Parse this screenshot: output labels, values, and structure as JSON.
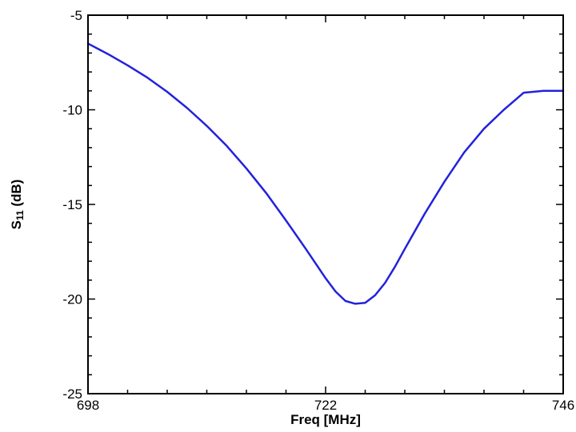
{
  "chart_data": {
    "type": "line",
    "xlabel": "Freq [MHz]",
    "ylabel_main": "S",
    "ylabel_sub": "11",
    "ylabel_unit": " (dB)",
    "xlim": [
      698,
      746
    ],
    "ylim": [
      -25,
      -5
    ],
    "x_ticks": [
      698,
      722,
      746
    ],
    "x_tick_labels": [
      "698",
      "722",
      "746"
    ],
    "y_ticks": [
      -5,
      -10,
      -15,
      -20,
      -25
    ],
    "y_tick_labels": [
      "-5",
      "-10",
      "-15",
      "-20",
      "-25"
    ],
    "y_minor_step": 1,
    "x_minor_step": 4,
    "grid": false,
    "series": [
      {
        "color": "#2222dd",
        "x": [
          698,
          700,
          702,
          704,
          706,
          708,
          710,
          712,
          714,
          716,
          718,
          720,
          722,
          723,
          724,
          725,
          726,
          727,
          728,
          729,
          730,
          732,
          734,
          736,
          738,
          740,
          742,
          744,
          746
        ],
        "y": [
          -6.5,
          -7.05,
          -7.65,
          -8.3,
          -9.05,
          -9.9,
          -10.85,
          -11.9,
          -13.1,
          -14.4,
          -15.85,
          -17.35,
          -18.9,
          -19.6,
          -20.1,
          -20.25,
          -20.2,
          -19.8,
          -19.15,
          -18.3,
          -17.35,
          -15.5,
          -13.8,
          -12.25,
          -11.0,
          -10.0,
          -9.1,
          -9.0,
          -9.0
        ]
      }
    ]
  }
}
